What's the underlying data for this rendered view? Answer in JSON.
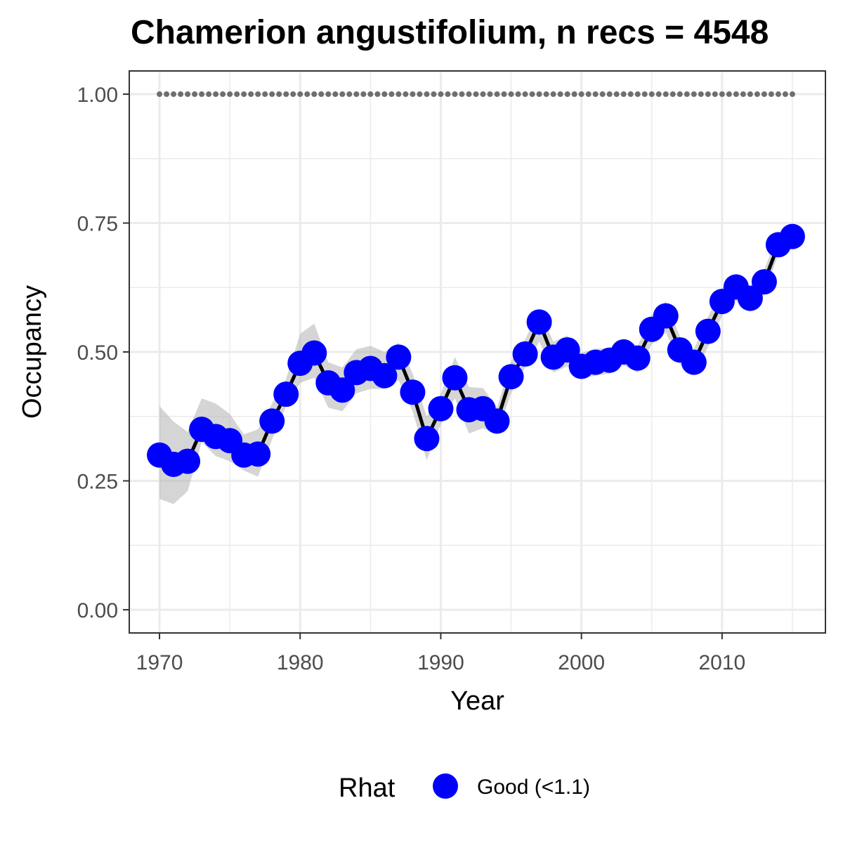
{
  "chart_data": {
    "type": "line",
    "title": "Chamerion angustifolium, n recs = 4548",
    "xlabel": "Year",
    "ylabel": "Occupancy",
    "xlim": [
      1967.85,
      1917.35
    ],
    "ylim": [
      -0.045,
      1.045
    ],
    "x_ticks": [
      "1970",
      "1980",
      "1990",
      "2000",
      "2010"
    ],
    "y_ticks": [
      "0.00",
      "0.25",
      "0.50",
      "0.75",
      "1.00"
    ],
    "grid": true,
    "x": [
      1970,
      1971,
      1972,
      1973,
      1974,
      1975,
      1976,
      1977,
      1978,
      1979,
      1980,
      1981,
      1982,
      1983,
      1984,
      1985,
      1986,
      1987,
      1988,
      1989,
      1990,
      1991,
      1992,
      1993,
      1994,
      1995,
      1996,
      1997,
      1998,
      1999,
      2000,
      2001,
      2002,
      2003,
      2004,
      2005,
      2006,
      2007,
      2008,
      2009,
      2010,
      2011,
      2012,
      2013,
      2014,
      2015
    ],
    "series": [
      {
        "name": "Good (<1.1)",
        "values": [
          0.3,
          0.282,
          0.288,
          0.35,
          0.336,
          0.328,
          0.3,
          0.302,
          0.366,
          0.418,
          0.478,
          0.498,
          0.44,
          0.426,
          0.46,
          0.468,
          0.454,
          0.49,
          0.422,
          0.332,
          0.39,
          0.45,
          0.388,
          0.39,
          0.366,
          0.452,
          0.496,
          0.558,
          0.49,
          0.504,
          0.472,
          0.48,
          0.484,
          0.5,
          0.488,
          0.544,
          0.57,
          0.504,
          0.48,
          0.54,
          0.598,
          0.626,
          0.604,
          0.636,
          0.708,
          0.724
        ],
        "lower": [
          0.215,
          0.205,
          0.23,
          0.325,
          0.298,
          0.288,
          0.27,
          0.258,
          0.33,
          0.395,
          0.44,
          0.45,
          0.392,
          0.385,
          0.42,
          0.428,
          0.428,
          0.445,
          0.385,
          0.29,
          0.36,
          0.41,
          0.342,
          0.352,
          0.34,
          0.42,
          0.47,
          0.52,
          0.46,
          0.472,
          0.448,
          0.454,
          0.458,
          0.474,
          0.46,
          0.515,
          0.538,
          0.476,
          0.458,
          0.51,
          0.57,
          0.6,
          0.578,
          0.61,
          0.69,
          0.705
        ],
        "upper": [
          0.395,
          0.365,
          0.345,
          0.41,
          0.4,
          0.38,
          0.34,
          0.35,
          0.4,
          0.448,
          0.535,
          0.555,
          0.48,
          0.47,
          0.505,
          0.512,
          0.5,
          0.518,
          0.458,
          0.375,
          0.418,
          0.49,
          0.432,
          0.43,
          0.392,
          0.482,
          0.524,
          0.582,
          0.52,
          0.532,
          0.498,
          0.506,
          0.508,
          0.526,
          0.512,
          0.572,
          0.598,
          0.53,
          0.505,
          0.568,
          0.624,
          0.652,
          0.628,
          0.66,
          0.728,
          0.742
        ]
      },
      {
        "name": "",
        "style": "dotted",
        "values": [
          1,
          1,
          1,
          1,
          1,
          1,
          1,
          1,
          1,
          1,
          1,
          1,
          1,
          1,
          1,
          1,
          1,
          1,
          1,
          1,
          1,
          1,
          1,
          1,
          1,
          1,
          1,
          1,
          1,
          1,
          1,
          1,
          1,
          1,
          1,
          1,
          1,
          1,
          1,
          1,
          1,
          1,
          1,
          1,
          1,
          1
        ]
      }
    ],
    "legend": {
      "title": "Rhat",
      "placement": "bottom"
    },
    "colors": {
      "points": "#0000ff",
      "line": "#000000",
      "ribbon": "#b3b3b3",
      "dotted": "#6e6e6e",
      "grid": "#ebebeb",
      "panel_border": "#333333"
    }
  }
}
